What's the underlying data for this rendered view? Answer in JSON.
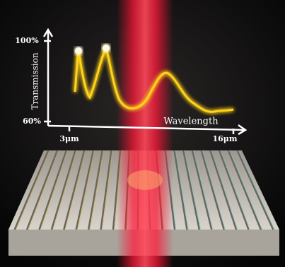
{
  "inset_plot": {
    "y_label": "Transmission",
    "x_label": "Wavelength",
    "y_ticks": [
      "100%",
      "60%"
    ],
    "x_ticks": [
      "3μm",
      "16μm"
    ]
  }
}
